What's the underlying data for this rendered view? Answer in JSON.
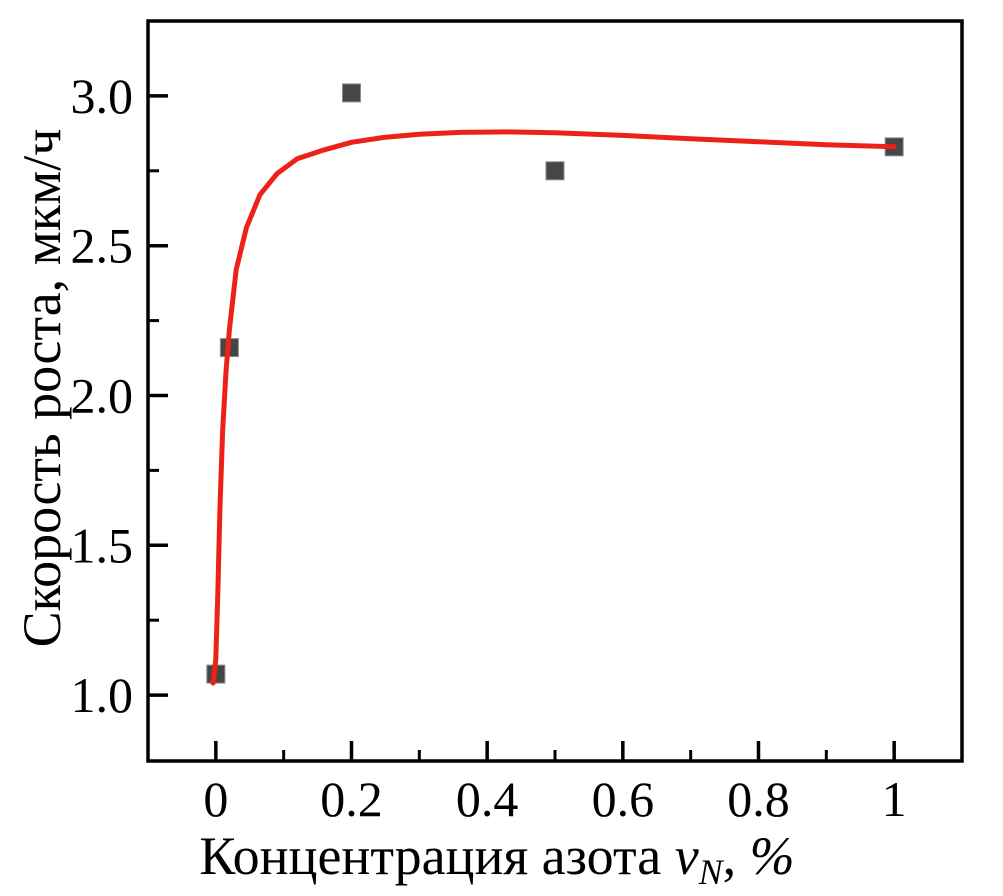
{
  "figure": {
    "background": "#ffffff",
    "axis_color": "#000000"
  },
  "chart_data": {
    "type": "scatter",
    "title": "",
    "xlabel_parts": {
      "main": "Концентрация азота ",
      "var": "v",
      "var_sub": "N",
      "comma": ", ",
      "pct": "%"
    },
    "xlabel_plain": "Концентрация азота vN, %",
    "ylabel": "Скорость роста, мкм/ч",
    "xlim": [
      -0.1,
      1.1
    ],
    "ylim": [
      0.78,
      3.25
    ],
    "grid": false,
    "legend": "none",
    "x_ticks": [
      0,
      0.2,
      0.4,
      0.6,
      0.8,
      1
    ],
    "x_tick_labels": [
      "0",
      "0.2",
      "0.4",
      "0.6",
      "0.8",
      "1"
    ],
    "x_minor_ticks": [
      0.1,
      0.3,
      0.5,
      0.7,
      0.9
    ],
    "y_ticks": [
      1.0,
      1.5,
      2.0,
      2.5,
      3.0
    ],
    "y_tick_labels": [
      "1.0",
      "1.5",
      "2.0",
      "2.5",
      "3.0"
    ],
    "y_minor_ticks": [
      1.25,
      1.75,
      2.25,
      2.75
    ],
    "series": [
      {
        "name": "experimental-points",
        "kind": "scatter",
        "marker": "square",
        "marker_size": 18,
        "color": "#464646",
        "edge_color": "#8c8c8c",
        "points": [
          [
            0,
            1.07
          ],
          [
            0.02,
            2.16
          ],
          [
            0.2,
            3.01
          ],
          [
            0.5,
            2.75
          ],
          [
            1.0,
            2.83
          ]
        ]
      },
      {
        "name": "fit-curve",
        "kind": "line",
        "color": "#ec221a",
        "line_width": 5,
        "points": [
          [
            -0.004,
            1.04
          ],
          [
            0.0,
            1.12
          ],
          [
            0.003,
            1.35
          ],
          [
            0.006,
            1.62
          ],
          [
            0.01,
            1.88
          ],
          [
            0.015,
            2.08
          ],
          [
            0.02,
            2.22
          ],
          [
            0.03,
            2.42
          ],
          [
            0.045,
            2.56
          ],
          [
            0.065,
            2.67
          ],
          [
            0.09,
            2.74
          ],
          [
            0.12,
            2.79
          ],
          [
            0.16,
            2.82
          ],
          [
            0.2,
            2.845
          ],
          [
            0.25,
            2.862
          ],
          [
            0.3,
            2.872
          ],
          [
            0.36,
            2.878
          ],
          [
            0.43,
            2.88
          ],
          [
            0.5,
            2.877
          ],
          [
            0.6,
            2.868
          ],
          [
            0.7,
            2.857
          ],
          [
            0.8,
            2.847
          ],
          [
            0.9,
            2.837
          ],
          [
            1.0,
            2.83
          ]
        ]
      }
    ]
  }
}
